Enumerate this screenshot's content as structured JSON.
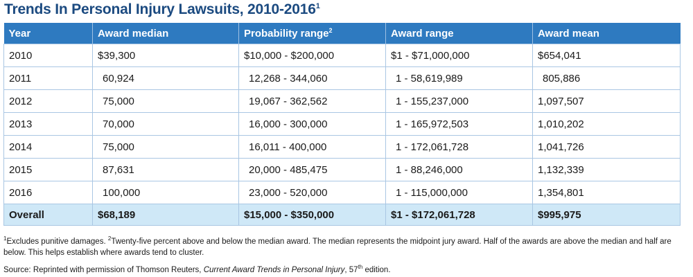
{
  "title": {
    "text": "Trends In Personal Injury Lawsuits, 2010-2016",
    "sup": "1"
  },
  "table": {
    "headers": {
      "year": "Year",
      "award_median": "Award median",
      "probability_range": "Probability range",
      "probability_range_sup": "2",
      "award_range": "Award range",
      "award_mean": "Award mean"
    },
    "rows": [
      {
        "year": "2010",
        "award_median": "$39,300",
        "probability_range": "$10,000 - $200,000",
        "award_range": "$1 - $71,000,000",
        "award_mean": "$654,041"
      },
      {
        "year": "2011",
        "award_median": "60,924",
        "probability_range": "12,268 - 344,060",
        "award_range": "1 - 58,619,989",
        "award_mean": "805,886"
      },
      {
        "year": "2012",
        "award_median": "75,000",
        "probability_range": "19,067 - 362,562",
        "award_range": "1 - 155,237,000",
        "award_mean": "1,097,507"
      },
      {
        "year": "2013",
        "award_median": "70,000",
        "probability_range": "16,000 - 300,000",
        "award_range": "1 - 165,972,503",
        "award_mean": "1,010,202"
      },
      {
        "year": "2014",
        "award_median": "75,000",
        "probability_range": "16,011 - 400,000",
        "award_range": "1 - 172,061,728",
        "award_mean": "1,041,726"
      },
      {
        "year": "2015",
        "award_median": "87,631",
        "probability_range": "20,000 - 485,475",
        "award_range": "1 - 88,246,000",
        "award_mean": "1,132,339"
      },
      {
        "year": "2016",
        "award_median": "100,000",
        "probability_range": "23,000 - 520,000",
        "award_range": "1 - 115,000,000",
        "award_mean": "1,354,801"
      }
    ],
    "overall": {
      "year": "Overall",
      "award_median": "$68,189",
      "probability_range": "$15,000 - $350,000",
      "award_range": "$1 - $172,061,728",
      "award_mean": "$995,975"
    }
  },
  "footnotes": {
    "note1_sup": "1",
    "note1_text": "Excludes punitive damages.",
    "note2_sup": "2",
    "note2_text": "Twenty-five percent above and below the median award. The median represents the midpoint jury award. Half of the awards are above the median and half are below. This helps establish where awards tend to cluster.",
    "source_prefix": "Source: Reprinted with permission of Thomson Reuters, ",
    "source_title": "Current Award Trends in Personal Injury",
    "source_edition_num": ", 57",
    "source_edition_sup": "th",
    "source_edition_suffix": " edition."
  }
}
